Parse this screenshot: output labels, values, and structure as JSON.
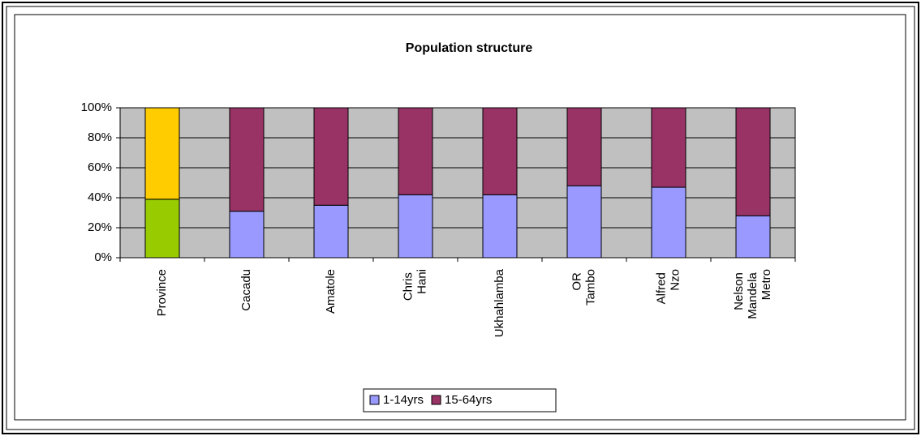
{
  "chart_data": {
    "type": "stacked_bar_percent",
    "title": "Population structure",
    "categories": [
      "Province",
      "Cacadu",
      "Amatole",
      "Chris Hani",
      "Ukhahlamba",
      "OR Tambo",
      "Alfred Nzo",
      "Nelson Mandela Metro"
    ],
    "series": [
      {
        "name": "1-14yrs",
        "color": "#9999ff",
        "colors": [
          "#99cc00",
          "#9999ff",
          "#9999ff",
          "#9999ff",
          "#9999ff",
          "#9999ff",
          "#9999ff",
          "#9999ff"
        ],
        "values": [
          39,
          31,
          35,
          42,
          42,
          48,
          47,
          28
        ]
      },
      {
        "name": "15-64yrs",
        "color": "#993366",
        "colors": [
          "#ffcc00",
          "#993366",
          "#993366",
          "#993366",
          "#993366",
          "#993366",
          "#993366",
          "#993366"
        ],
        "values": [
          61,
          69,
          65,
          58,
          58,
          52,
          53,
          72
        ]
      }
    ],
    "ylim": [
      0,
      100
    ],
    "yticks": [
      {
        "value": 0,
        "label": "0%"
      },
      {
        "value": 20,
        "label": "20%"
      },
      {
        "value": 40,
        "label": "40%"
      },
      {
        "value": 60,
        "label": "60%"
      },
      {
        "value": 80,
        "label": "80%"
      },
      {
        "value": 100,
        "label": "100%"
      }
    ],
    "grid": true,
    "legend": "bottom",
    "plot_background": "#c0c0c0"
  }
}
